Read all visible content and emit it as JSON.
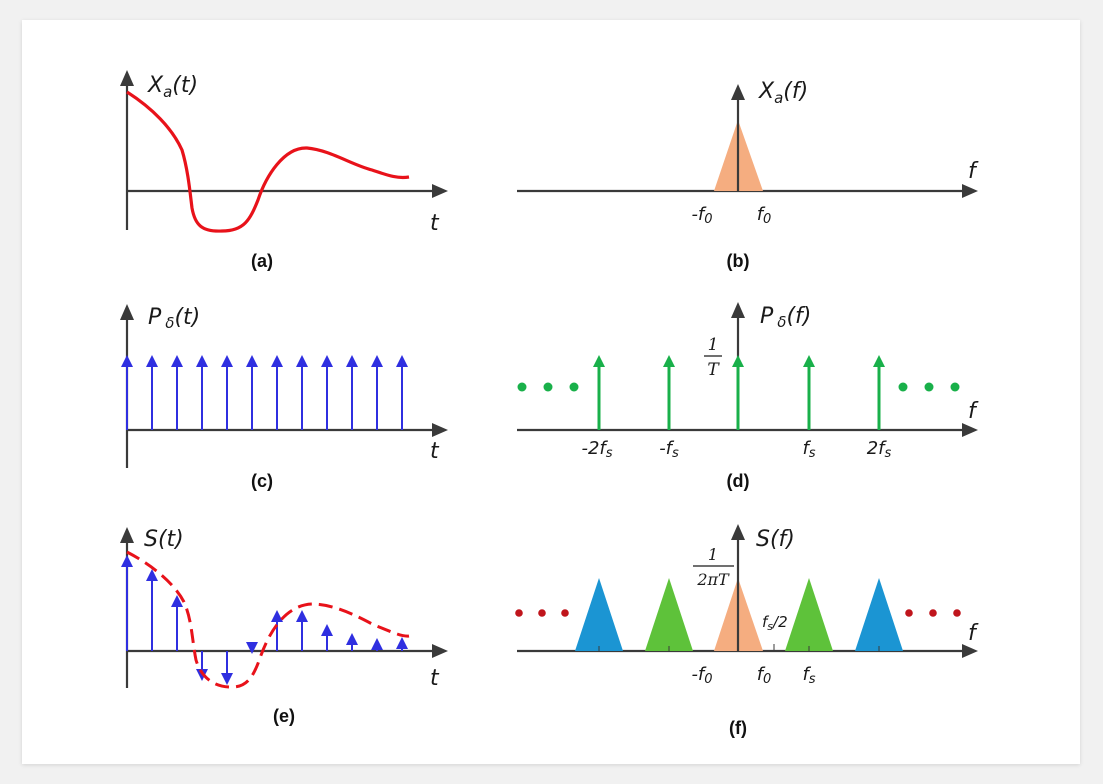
{
  "panels": {
    "a": {
      "caption": "(a)",
      "ylabel": "X",
      "ylabel_sub": "a",
      "ylabel_arg": "(t)",
      "xlabel": "t"
    },
    "b": {
      "caption": "(b)",
      "ylabel": "X",
      "ylabel_sub": "a",
      "ylabel_arg": "(f)",
      "xlabel": "f",
      "tick_neg": "-f",
      "tick_pos": "f",
      "tick_sub": "0"
    },
    "c": {
      "caption": "(c)",
      "ylabel": "P",
      "ylabel_sym": "δ",
      "ylabel_arg": "(t)",
      "xlabel": "t"
    },
    "d": {
      "caption": "(d)",
      "ylabel": "P",
      "ylabel_sym": "δ",
      "ylabel_arg": "(f)",
      "xlabel": "f",
      "amp_num": "1",
      "amp_den": "T",
      "ticks": [
        {
          "base": "-2f",
          "sub": "s"
        },
        {
          "base": "-f",
          "sub": "s"
        },
        {
          "base": "f",
          "sub": "s"
        },
        {
          "base": "2f",
          "sub": "s"
        }
      ]
    },
    "e": {
      "caption": "(e)",
      "ylabel": "S(t)",
      "xlabel": "t"
    },
    "f": {
      "caption": "(f)",
      "ylabel": "S(f)",
      "xlabel": "f",
      "amp_num": "1",
      "amp_den": "2πT",
      "half_label": "f",
      "half_sub": "s",
      "half_suffix": "/2",
      "tick_neg": "-f",
      "tick_pos": "f",
      "tick_sub": "0",
      "tick_fs": "f",
      "tick_fs_sub": "s"
    }
  },
  "colors": {
    "signal": "#e8121a",
    "sample_arrows": "#2f2fe0",
    "spectrum_impulses": "#19b04a",
    "dots_d": "#19b04a",
    "dots_f": "#c0151c",
    "baseband": "#f5ad80",
    "replica_1": "#5ec23a",
    "replica_2": "#1b95d3",
    "axis": "#3a3a3a"
  }
}
